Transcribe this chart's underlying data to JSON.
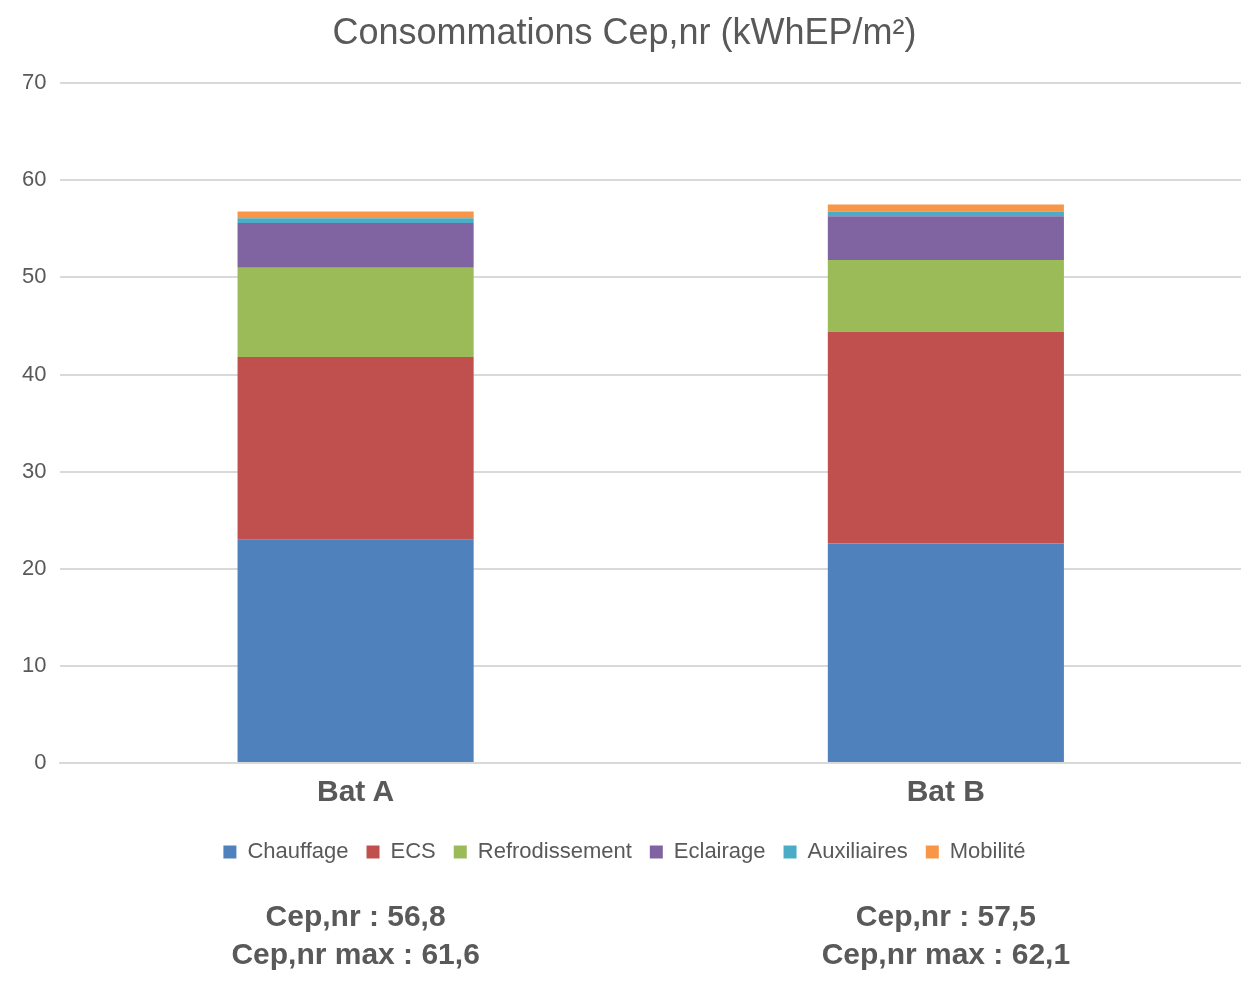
{
  "chart_data": {
    "type": "bar",
    "title": "Consommations Cep,nr (kWhEP/m²)",
    "categories": [
      "Bat A",
      "Bat B"
    ],
    "stacked": true,
    "ylim": [
      0,
      70
    ],
    "yticks": [
      0,
      10,
      20,
      30,
      40,
      50,
      60,
      70
    ],
    "grid": "y",
    "legend": "bottom",
    "series": [
      {
        "name": "Chauffage",
        "color": "#4f81bd",
        "values": [
          23.0,
          22.6
        ]
      },
      {
        "name": "ECS",
        "color": "#c0504d",
        "values": [
          18.8,
          21.8
        ]
      },
      {
        "name": "Refrodissement",
        "color": "#9bbb59",
        "values": [
          9.2,
          7.4
        ]
      },
      {
        "name": "Eclairage",
        "color": "#8064a2",
        "values": [
          4.6,
          4.5
        ]
      },
      {
        "name": "Auxiliaires",
        "color": "#4bacc6",
        "values": [
          0.5,
          0.5
        ]
      },
      {
        "name": "Mobilité",
        "color": "#f79646",
        "values": [
          0.7,
          0.7
        ]
      }
    ],
    "annotations": [
      "Cep,nr : 56,8",
      "Cep,nr max : 61,6",
      "Cep,nr : 57,5",
      "Cep,nr max : 62,1"
    ]
  }
}
